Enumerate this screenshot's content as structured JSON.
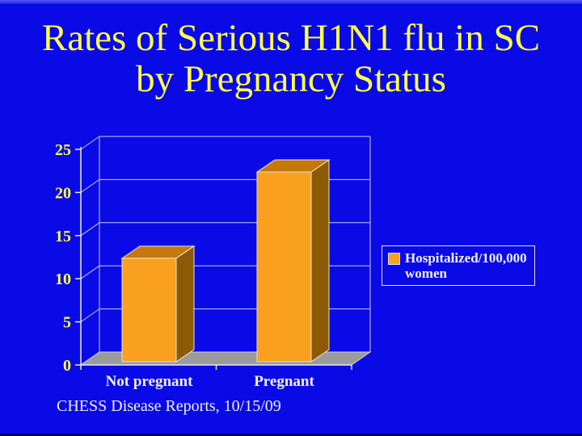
{
  "slide": {
    "title_line1": "Rates of Serious H1N1 flu in SC",
    "title_line2": "by Pregnancy Status",
    "footer_citation": "CHESS Disease Reports, 10/15/09"
  },
  "legend": {
    "label": "Hospitalized/100,000\nwomen"
  },
  "chart_data": {
    "type": "bar",
    "style": "3d-bar",
    "title": "Rates of Serious H1N1 flu in SC by Pregnancy Status",
    "categories": [
      "Not pregnant",
      "Pregnant"
    ],
    "series": [
      {
        "name": "Hospitalized/100,000 women",
        "values": [
          12,
          22
        ]
      }
    ],
    "xlabel": "",
    "ylabel": "",
    "ylim": [
      0,
      25
    ],
    "yticks": [
      0,
      5,
      10,
      15,
      20,
      25
    ],
    "grid": true,
    "legend_position": "right"
  },
  "colors": {
    "background": "#0a0ae6",
    "title_yellow": "#ffff45",
    "axis_label_yellow": "#ffff45",
    "text_white": "#f2f2f2",
    "bar_front": "#f9a01e",
    "bar_top": "#c5790d",
    "bar_side": "#8c5a04",
    "bar_edge": "#e9e2d2",
    "floor_gray": "#9b9b9b",
    "gridline": "#c9cde9",
    "axis_line": "#e8ebf7"
  }
}
